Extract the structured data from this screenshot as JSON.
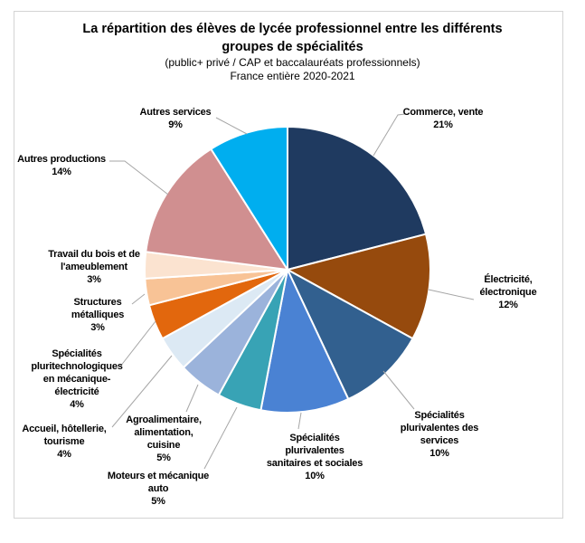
{
  "header": {
    "title": "La répartition des élèves de lycée professionnel entre les différents groupes de spécialités",
    "subtitle1": "(public+ privé / CAP et baccalauréats professionnels)",
    "subtitle2": "France entière 2020-2021"
  },
  "chart_data": {
    "type": "pie",
    "title": "La répartition des élèves de lycée professionnel entre les différents groupes de spécialités",
    "subtitle": "(public+ privé / CAP et baccalauréats professionnels) — France entière 2020-2021",
    "unit": "percent",
    "start_angle_deg": 0,
    "direction": "clockwise",
    "legend_position": "none (labels with leader lines around pie)",
    "categories": [
      "Commerce, vente",
      "Électricité, électronique",
      "Spécialités plurivalentes des services",
      "Spécialités plurivalentes sanitaires et sociales",
      "Moteurs et mécanique auto",
      "Agroalimentaire, alimentation, cuisine",
      "Accueil, hôtellerie, tourisme",
      "Spécialités pluritechnologiques en mécanique-électricité",
      "Structures métalliques",
      "Travail du bois et de l'ameublement",
      "Autres productions",
      "Autres services"
    ],
    "values": [
      21,
      12,
      10,
      10,
      5,
      5,
      4,
      4,
      3,
      3,
      14,
      9
    ],
    "colors": [
      "#1F3A60",
      "#964A0D",
      "#32608F",
      "#4A82D3",
      "#38A3B5",
      "#9BB3DB",
      "#DCE9F4",
      "#E2670D",
      "#F8C396",
      "#FBE3D0",
      "#D08F90",
      "#00AEEF"
    ],
    "labels_with_values": [
      "Commerce, vente\n21%",
      "Électricité,\nélectronique\n12%",
      "Spécialités\nplurivalentes des\nservices\n10%",
      "Spécialités\nplurivalentes\nsanitaires et sociales\n10%",
      "Moteurs et mécanique\nauto\n5%",
      "Agroalimentaire,\nalimentation,\ncuisine\n5%",
      "Accueil, hôtellerie,\ntourisme\n4%",
      "Spécialités\npluritechnologiques\nen mécanique-\nélectricité\n4%",
      "Structures\nmétalliques\n3%",
      "Travail du bois et de\nl'ameublement\n3%",
      "Autres productions\n14%",
      "Autres services\n9%"
    ],
    "leader_line_color": "#A6A6A6",
    "slice_divider_color": "#FFFFFF"
  }
}
